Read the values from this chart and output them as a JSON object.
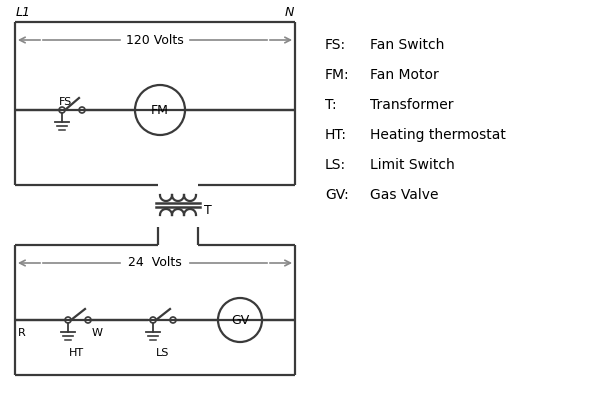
{
  "background_color": "#ffffff",
  "line_color": "#3a3a3a",
  "arrow_color": "#888888",
  "text_color": "#000000",
  "legend_items": [
    [
      "FS:",
      "Fan Switch"
    ],
    [
      "FM:",
      "Fan Motor"
    ],
    [
      "T:",
      "Transformer"
    ],
    [
      "HT:",
      "Heating thermostat"
    ],
    [
      "LS:",
      "Limit Switch"
    ],
    [
      "GV:",
      "Gas Valve"
    ]
  ],
  "volts120_label": "120 Volts",
  "volts24_label": "24  Volts",
  "L1_label": "L1",
  "N_label": "N",
  "T_label": "T",
  "R_label": "R",
  "W_label": "W",
  "HT_label": "HT",
  "LS_label": "LS"
}
